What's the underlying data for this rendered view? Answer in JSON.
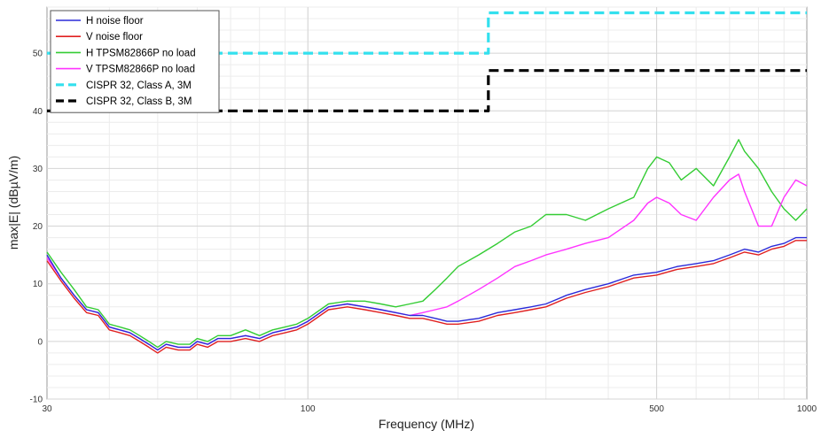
{
  "chart_data": {
    "type": "line",
    "xlabel": "Frequency (MHz)",
    "ylabel": "max|E| (dBµV/m)",
    "x_scale": "log",
    "xlim": [
      30,
      1000
    ],
    "ylim": [
      -10,
      58
    ],
    "x_ticks": [
      30,
      100,
      500,
      1000
    ],
    "x_tick_labels": [
      "30",
      "100",
      "500",
      "1000"
    ],
    "y_ticks": [
      -10,
      0,
      10,
      20,
      30,
      40,
      50
    ],
    "y_tick_labels": [
      "-10",
      "0",
      "10",
      "20",
      "30",
      "40",
      "50"
    ],
    "grid": true,
    "minor_grid": true,
    "legend_position": "top-left",
    "series": [
      {
        "name": "H noise floor",
        "color": "#2b2bd9",
        "style": "solid",
        "x": [
          30,
          32,
          34,
          36,
          38,
          40,
          42,
          44,
          46,
          48,
          50,
          52,
          55,
          58,
          60,
          63,
          66,
          70,
          75,
          80,
          85,
          90,
          95,
          100,
          110,
          120,
          130,
          140,
          150,
          160,
          170,
          180,
          190,
          200,
          220,
          240,
          260,
          280,
          300,
          330,
          360,
          400,
          450,
          500,
          550,
          600,
          650,
          700,
          750,
          800,
          850,
          900,
          950,
          1000
        ],
        "y": [
          15,
          11,
          8,
          5.5,
          5,
          2.5,
          2,
          1.5,
          0.5,
          -0.5,
          -1.5,
          -0.5,
          -1,
          -1,
          0,
          -0.5,
          0.5,
          0.5,
          1,
          0.5,
          1.5,
          2,
          2.5,
          3.5,
          6,
          6.5,
          6,
          5.5,
          5,
          4.5,
          4.5,
          4,
          3.5,
          3.5,
          4,
          5,
          5.5,
          6,
          6.5,
          8,
          9,
          10,
          11.5,
          12,
          13,
          13.5,
          14,
          15,
          16,
          15.5,
          16.5,
          17,
          18,
          18
        ]
      },
      {
        "name": "V noise floor",
        "color": "#e02020",
        "style": "solid",
        "x": [
          30,
          32,
          34,
          36,
          38,
          40,
          42,
          44,
          46,
          48,
          50,
          52,
          55,
          58,
          60,
          63,
          66,
          70,
          75,
          80,
          85,
          90,
          95,
          100,
          110,
          120,
          130,
          140,
          150,
          160,
          170,
          180,
          190,
          200,
          220,
          240,
          260,
          280,
          300,
          330,
          360,
          400,
          450,
          500,
          550,
          600,
          650,
          700,
          750,
          800,
          850,
          900,
          950,
          1000
        ],
        "y": [
          14,
          10.5,
          7.5,
          5,
          4.5,
          2,
          1.5,
          1,
          0,
          -1,
          -2,
          -1,
          -1.5,
          -1.5,
          -0.5,
          -1,
          0,
          0,
          0.5,
          0,
          1,
          1.5,
          2,
          3,
          5.5,
          6,
          5.5,
          5,
          4.5,
          4,
          4,
          3.5,
          3,
          3,
          3.5,
          4.5,
          5,
          5.5,
          6,
          7.5,
          8.5,
          9.5,
          11,
          11.5,
          12.5,
          13,
          13.5,
          14.5,
          15.5,
          15,
          16,
          16.5,
          17.5,
          17.5
        ]
      },
      {
        "name": "H TPSM82866P no load",
        "color": "#33cc33",
        "style": "solid",
        "x": [
          30,
          32,
          34,
          36,
          38,
          40,
          42,
          44,
          46,
          48,
          50,
          52,
          55,
          58,
          60,
          63,
          66,
          70,
          75,
          80,
          85,
          90,
          95,
          100,
          110,
          120,
          130,
          140,
          150,
          160,
          170,
          175,
          180,
          190,
          200,
          220,
          240,
          260,
          280,
          300,
          330,
          360,
          400,
          450,
          480,
          500,
          530,
          560,
          600,
          650,
          700,
          730,
          750,
          800,
          850,
          900,
          950,
          1000
        ],
        "y": [
          15.5,
          12,
          9,
          6,
          5.5,
          3,
          2.5,
          2,
          1,
          0,
          -1,
          0,
          -0.5,
          -0.5,
          0.5,
          0,
          1,
          1,
          2,
          1,
          2,
          2.5,
          3,
          4,
          6.5,
          7,
          7,
          6.5,
          6,
          6.5,
          7,
          8,
          9,
          11,
          13,
          15,
          17,
          19,
          20,
          22,
          22,
          21,
          23,
          25,
          30,
          32,
          31,
          28,
          30,
          27,
          32,
          35,
          33,
          30,
          26,
          23,
          21,
          23
        ]
      },
      {
        "name": "V TPSM82866P no load",
        "color": "#ff33ff",
        "style": "solid",
        "x": [
          30,
          32,
          34,
          36,
          38,
          40,
          42,
          44,
          46,
          48,
          50,
          52,
          55,
          58,
          60,
          63,
          66,
          70,
          75,
          80,
          85,
          90,
          95,
          100,
          110,
          120,
          130,
          140,
          150,
          160,
          170,
          180,
          190,
          200,
          220,
          240,
          260,
          280,
          300,
          330,
          360,
          400,
          450,
          480,
          500,
          530,
          560,
          600,
          650,
          700,
          730,
          750,
          800,
          850,
          900,
          950,
          1000
        ],
        "y": [
          14.5,
          11,
          8,
          5.5,
          5,
          2.5,
          2,
          1.5,
          0.5,
          -0.5,
          -1.5,
          -0.5,
          -1,
          -1,
          0,
          -0.5,
          0.5,
          0.5,
          1,
          0.5,
          1.5,
          2,
          2.5,
          3.5,
          6,
          6.5,
          6,
          5.5,
          5,
          4.5,
          5,
          5.5,
          6,
          7,
          9,
          11,
          13,
          14,
          15,
          16,
          17,
          18,
          21,
          24,
          25,
          24,
          22,
          21,
          25,
          28,
          29,
          26,
          20,
          20,
          25,
          28,
          27
        ]
      },
      {
        "name": "CISPR 32, Class A, 3M",
        "color": "#33e0ee",
        "style": "dashed",
        "x": [
          30,
          230,
          230,
          1000
        ],
        "y": [
          50,
          50,
          57,
          57
        ]
      },
      {
        "name": "CISPR 32, Class B, 3M",
        "color": "#000000",
        "style": "dashed",
        "x": [
          30,
          230,
          230,
          1000
        ],
        "y": [
          40,
          40,
          47,
          47
        ]
      }
    ]
  }
}
